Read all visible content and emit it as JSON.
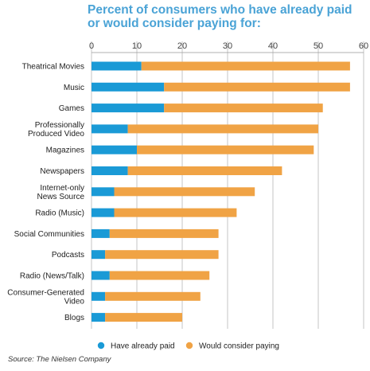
{
  "chart_data": {
    "type": "bar",
    "orientation": "horizontal",
    "stacked": true,
    "title_lines": [
      "Percent of consumers who have already paid",
      "or would consider paying for:"
    ],
    "categories": [
      "Theatrical Movies",
      "Music",
      "Games",
      "Professionally Produced Video",
      "Magazines",
      "Newspapers",
      "Internet-only News Source",
      "Radio (Music)",
      "Social Communities",
      "Podcasts",
      "Radio (News/Talk)",
      "Consumer-Generated Video",
      "Blogs"
    ],
    "category_label_lines": [
      [
        "Theatrical Movies"
      ],
      [
        "Music"
      ],
      [
        "Games"
      ],
      [
        "Professionally",
        "Produced Video"
      ],
      [
        "Magazines"
      ],
      [
        "Newspapers"
      ],
      [
        "Internet-only",
        "News Source"
      ],
      [
        "Radio (Music)"
      ],
      [
        "Social Communities"
      ],
      [
        "Podcasts"
      ],
      [
        "Radio (News/Talk)"
      ],
      [
        "Consumer-Generated",
        "Video"
      ],
      [
        "Blogs"
      ]
    ],
    "series": [
      {
        "name": "Have already paid",
        "color": "#1a9ad6",
        "values": [
          11,
          16,
          16,
          8,
          10,
          8,
          5,
          5,
          4,
          3,
          4,
          3,
          3
        ]
      },
      {
        "name": "Would consider paying",
        "color": "#f0a345",
        "values": [
          46,
          41,
          35,
          42,
          39,
          34,
          31,
          27,
          24,
          25,
          22,
          21,
          17
        ]
      }
    ],
    "xlim": [
      0,
      60
    ],
    "xticks": [
      "0",
      "10",
      "20",
      "30",
      "40",
      "50",
      "60"
    ],
    "xlabel": "",
    "ylabel": "",
    "grid": true,
    "legend_position": "bottom"
  },
  "source": "Source: The Nielsen Company"
}
